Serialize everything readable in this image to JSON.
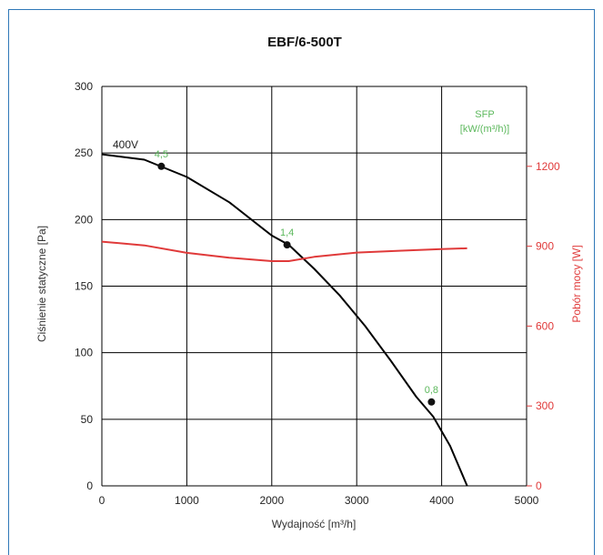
{
  "chart_data": {
    "type": "line",
    "title": "EBF/6-500T",
    "xlabel": "Wydajność [m³/h]",
    "ylabel": "Ciśnienie statyczne [Pa]",
    "y2label": "Pobór mocy [W]",
    "xlim": [
      0,
      5000
    ],
    "ylim": [
      0,
      300
    ],
    "y2lim": [
      0,
      1500
    ],
    "x_ticks": [
      0,
      1000,
      2000,
      3000,
      4000,
      5000
    ],
    "y_ticks": [
      0,
      50,
      100,
      150,
      200,
      250,
      300
    ],
    "y2_ticks": [
      0,
      300,
      600,
      900,
      1200
    ],
    "grid": true,
    "sfp_header": [
      "SFP",
      "[kW/(m³/h)]"
    ],
    "series": [
      {
        "name": "400V",
        "color": "#000000",
        "axis": "left",
        "x": [
          0,
          500,
          1000,
          1500,
          2000,
          2200,
          2500,
          2800,
          3100,
          3400,
          3700,
          3900,
          4100,
          4300
        ],
        "y": [
          249,
          245,
          232,
          213,
          188,
          181,
          163,
          143,
          120,
          94,
          67,
          52,
          30,
          0
        ]
      },
      {
        "name": "",
        "color": "#e03a3a",
        "axis": "right",
        "x": [
          0,
          500,
          1000,
          1500,
          2000,
          2200,
          2500,
          3000,
          3500,
          4000,
          4300
        ],
        "y": [
          917,
          903,
          875,
          857,
          844,
          844,
          860,
          876,
          883,
          889,
          892
        ]
      }
    ],
    "points": [
      {
        "x": 700,
        "y": 240,
        "label": "4,5"
      },
      {
        "x": 2180,
        "y": 181,
        "label": "1,4"
      },
      {
        "x": 3880,
        "y": 63,
        "label": "0,8"
      }
    ]
  }
}
